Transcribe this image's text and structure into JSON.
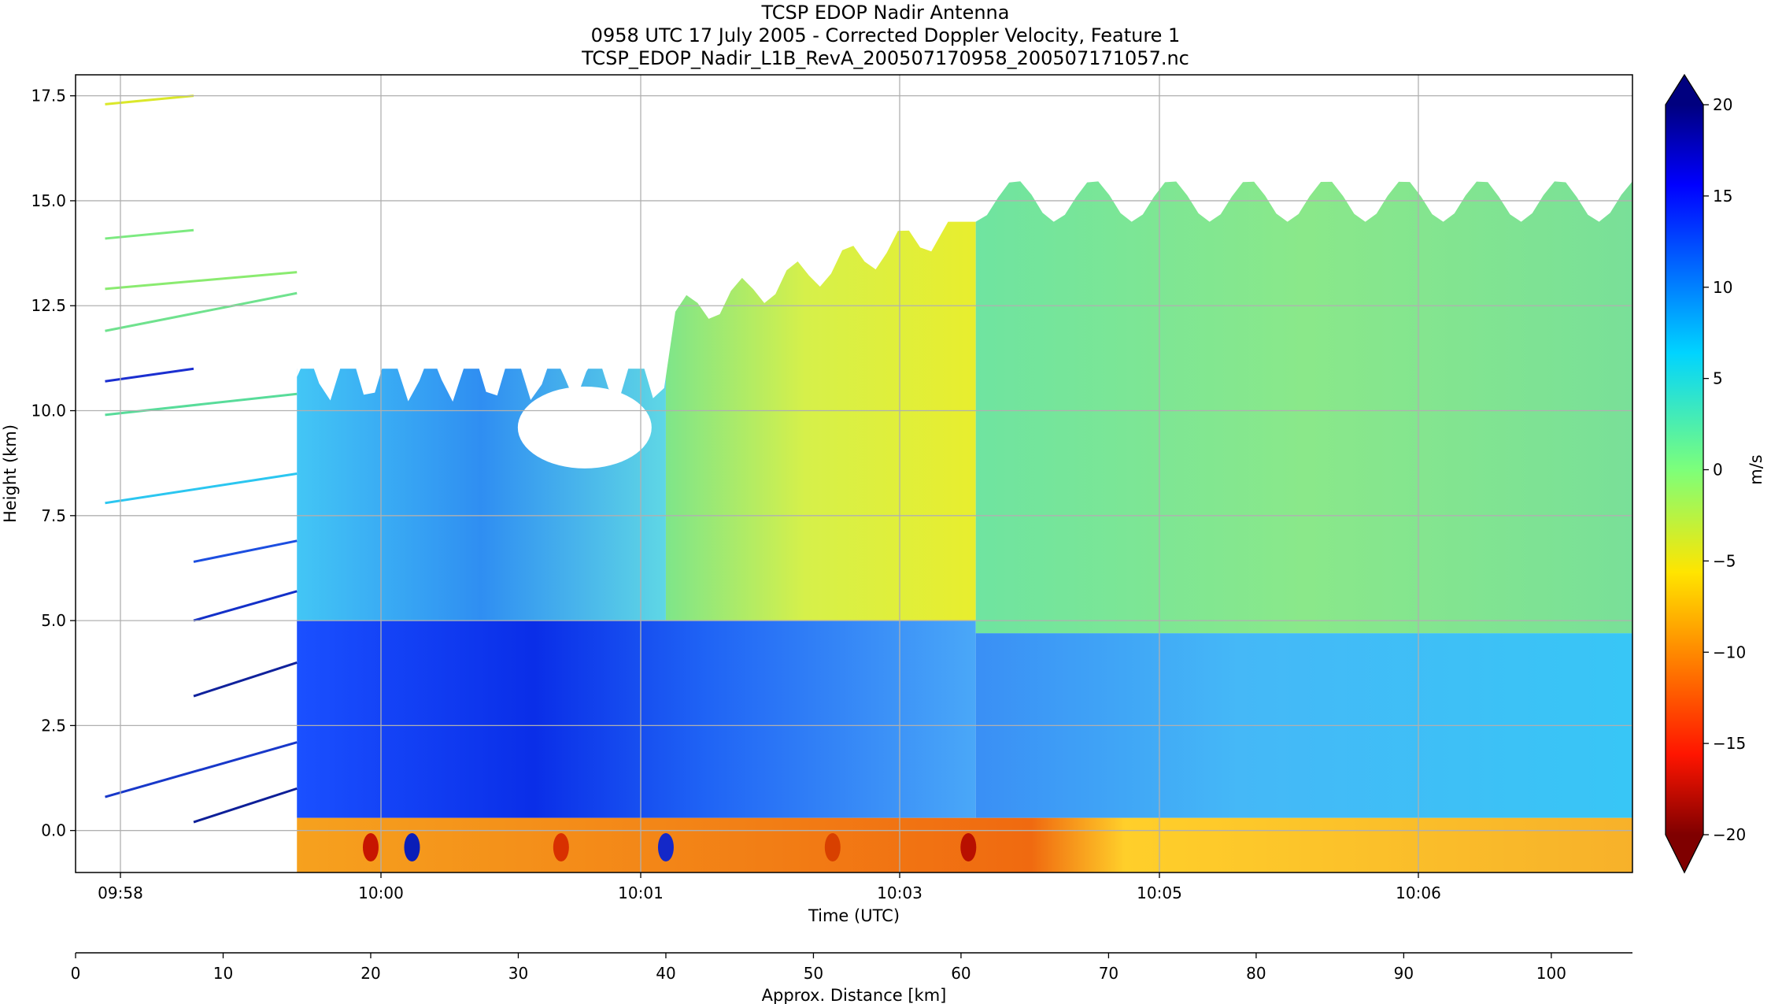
{
  "chart_data": {
    "type": "heatmap",
    "title_lines": [
      "TCSP EDOP Nadir Antenna",
      "0958 UTC 17 July 2005 - Corrected Doppler Velocity, Feature 1",
      "TCSP_EDOP_Nadir_L1B_RevA_200507170958_200507171057.nc"
    ],
    "xlabel": "Time (UTC)",
    "ylabel": "Height (km)",
    "secondary_xlabel": "Approx. Distance [km]",
    "colorbar_label": "m/s",
    "ylim": [
      -1.0,
      18.0
    ],
    "y_ticks": [
      0.0,
      2.5,
      5.0,
      7.5,
      10.0,
      12.5,
      15.0,
      17.5
    ],
    "y_tick_labels": [
      "0.0",
      "2.5",
      "5.0",
      "7.5",
      "10.0",
      "12.5",
      "15.0",
      "17.5"
    ],
    "x_tick_labels": [
      "09:58",
      "10:00",
      "10:01",
      "10:03",
      "10:05",
      "10:06"
    ],
    "distance_ticks": [
      0,
      10,
      20,
      30,
      40,
      50,
      60,
      70,
      80,
      90,
      100
    ],
    "distance_tick_labels": [
      "0",
      "10",
      "20",
      "30",
      "40",
      "50",
      "60",
      "70",
      "80",
      "90",
      "100"
    ],
    "distance_range": [
      0,
      105.5
    ],
    "colorbar_range": [
      -20,
      20
    ],
    "colorbar_ticks": [
      20,
      15,
      10,
      5,
      0,
      -5,
      -10,
      -15,
      -20
    ],
    "colorbar_tick_labels": [
      "20",
      "15",
      "10",
      "5",
      "0",
      "−5",
      "−10",
      "−15",
      "−20"
    ],
    "colormap": "jet",
    "colormap_reversed": true,
    "colorbar_extend": "both",
    "grid": true,
    "regions": [
      {
        "name": "lower layer, first half",
        "distance_km": [
          15,
          61
        ],
        "height_km": [
          0.3,
          5.0
        ],
        "velocity_ms": 14
      },
      {
        "name": "lower layer, second half",
        "distance_km": [
          61,
          105.5
        ],
        "height_km": [
          0.3,
          4.7
        ],
        "velocity_ms": 6
      },
      {
        "name": "upper layer, first half",
        "distance_km": [
          15,
          40
        ],
        "height_km": [
          5.0,
          11.0
        ],
        "velocity_ms": 8
      },
      {
        "name": "upper layer, middle",
        "distance_km": [
          40,
          61
        ],
        "height_km": [
          5.0,
          14.5
        ],
        "velocity_ms": -4
      },
      {
        "name": "upper layer, second half",
        "distance_km": [
          61,
          105.5
        ],
        "height_km": [
          4.7,
          16.0
        ],
        "velocity_ms": 0
      },
      {
        "name": "near-surface layer",
        "distance_km": [
          15,
          105.5
        ],
        "height_km": [
          -1.0,
          0.3
        ],
        "velocity_ms": -9
      }
    ]
  }
}
